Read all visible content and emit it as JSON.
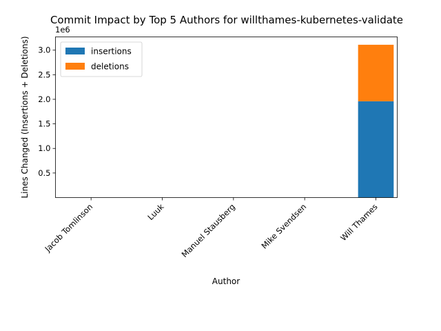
{
  "chart_data": {
    "type": "bar",
    "stacked": true,
    "title": "Commit Impact by Top 5 Authors for willthames-kubernetes-validate",
    "xlabel": "Author",
    "ylabel": "Lines Changed (Insertions + Deletions)",
    "y_scale_label": "1e6",
    "categories": [
      "Jacob Tomlinson",
      "Luuk",
      "Manuel Stausberg",
      "Mike Svendsen",
      "Will Thames"
    ],
    "series": [
      {
        "name": "insertions",
        "color": "#1f77b4",
        "values": [
          20,
          4,
          2,
          10,
          1960000
        ]
      },
      {
        "name": "deletions",
        "color": "#ff7f0e",
        "values": [
          10,
          2,
          2,
          4,
          1150000
        ]
      }
    ],
    "ylim": [
      0,
      3270000
    ],
    "yticks": [
      500000,
      1000000,
      1500000,
      2000000,
      2500000,
      3000000
    ],
    "ytick_labels": [
      "0.5",
      "1.0",
      "1.5",
      "2.0",
      "2.5",
      "3.0"
    ],
    "legend_position": "top-left",
    "grid": false
  }
}
